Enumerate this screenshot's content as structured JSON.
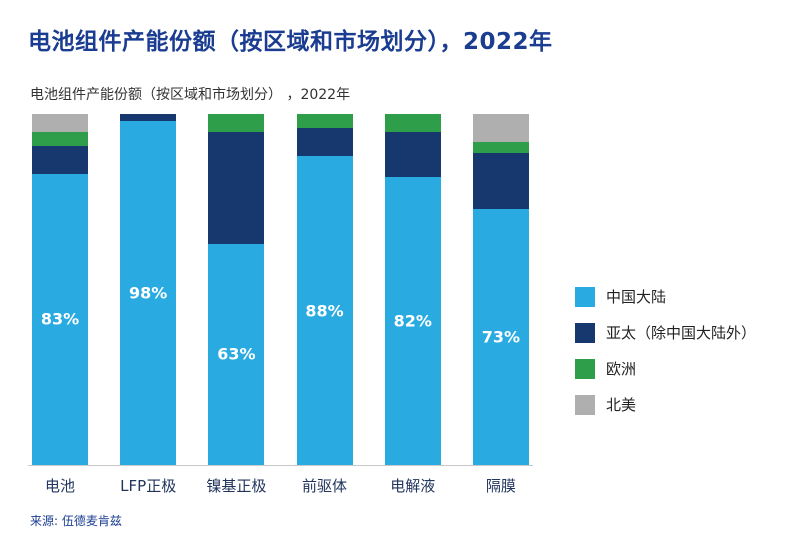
{
  "page": {
    "title": "电池组件产能份额（按区域和市场划分），2022年",
    "source": "来源: 伍德麦肯兹"
  },
  "chart_data": {
    "type": "bar",
    "stacked": true,
    "units": "percent",
    "title": "电池组件产能份额（按区域和市场划分） ，2022年",
    "categories": [
      "电池",
      "LFP正极",
      "镍基正极",
      "前驱体",
      "电解液",
      "隔膜"
    ],
    "series": [
      {
        "name": "中国大陆",
        "color": "#29abe2",
        "values": [
          83,
          98,
          63,
          88,
          82,
          73
        ]
      },
      {
        "name": "亚太（除中国大陆外）",
        "color": "#16386e",
        "values": [
          8,
          2,
          32,
          8,
          13,
          16
        ]
      },
      {
        "name": "欧洲",
        "color": "#2e9e4a",
        "values": [
          4,
          0,
          5,
          4,
          5,
          3
        ]
      },
      {
        "name": "北美",
        "color": "#afafaf",
        "values": [
          5,
          0,
          0,
          0,
          0,
          8
        ]
      }
    ],
    "bar_labels": [
      "83%",
      "98%",
      "63%",
      "88%",
      "82%",
      "73%"
    ],
    "ylim": [
      0,
      100
    ],
    "grid": false,
    "legend_position": "right"
  }
}
